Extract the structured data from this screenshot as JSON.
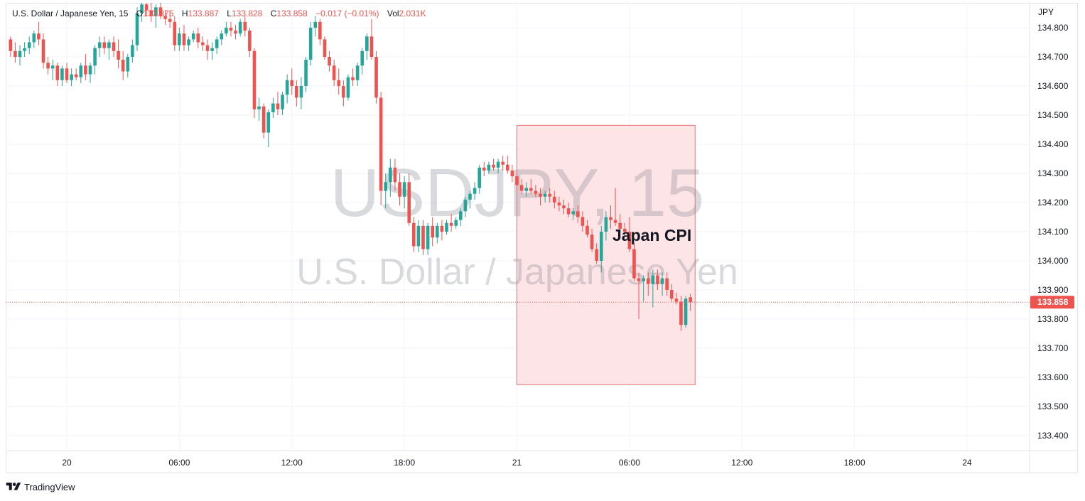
{
  "legend": {
    "symbol": "U.S. Dollar / Japanese Yen, 15",
    "o_label": "O",
    "o_value": "133.875",
    "h_label": "H",
    "h_value": "133.887",
    "l_label": "L",
    "l_value": "133.828",
    "c_label": "C",
    "c_value": "133.858",
    "change": "−0.017 (−0.01%)",
    "vol_label": "Vol",
    "vol_value": "2.031K"
  },
  "watermark": {
    "line1": "USDJPY, 15",
    "line2": "U.S. Dollar / Japanese Yen"
  },
  "annotation": {
    "label": "Japan CPI"
  },
  "axis": {
    "currency": "JPY",
    "last_price": "133.858",
    "y_ticks": [
      "134.800",
      "134.700",
      "134.600",
      "134.500",
      "134.400",
      "134.300",
      "134.200",
      "134.100",
      "134.000",
      "133.900",
      "133.800",
      "133.700",
      "133.600",
      "133.500",
      "133.400"
    ],
    "x_ticks": [
      "20",
      "06:00",
      "12:00",
      "18:00",
      "21",
      "06:00",
      "12:00",
      "18:00",
      "24"
    ]
  },
  "footer": {
    "brand": "TradingView"
  },
  "colors": {
    "up": "#26a69a",
    "down": "#ef5350",
    "box_fill": "#fde4e6",
    "box_stroke": "#e57373",
    "grid": "#f0f3fa"
  },
  "chart_data": {
    "type": "candlestick",
    "title": "U.S. Dollar / Japanese Yen, 15",
    "ylabel": "JPY",
    "ylim": [
      133.35,
      134.85
    ],
    "y_ticks": [
      134.8,
      134.7,
      134.6,
      134.5,
      134.4,
      134.3,
      134.2,
      134.1,
      134.0,
      133.9,
      133.8,
      133.7,
      133.6,
      133.5,
      133.4
    ],
    "x_tick_labels": [
      "20",
      "06:00",
      "12:00",
      "18:00",
      "21",
      "06:00",
      "12:00",
      "18:00",
      "24"
    ],
    "x_tick_times_h": [
      0,
      6,
      12,
      18,
      24,
      30,
      36,
      42,
      48
    ],
    "last_price": 133.858,
    "annotation_box": {
      "label": "Japan CPI",
      "x_start_h": 24.0,
      "x_end_h": 33.5,
      "y_low": 133.575,
      "y_high": 134.465
    },
    "candles": [
      [
        -3.25,
        134.75,
        134.78,
        134.73,
        134.76
      ],
      [
        -3.0,
        134.76,
        134.77,
        134.7,
        134.72
      ],
      [
        -2.75,
        134.72,
        134.75,
        134.68,
        134.7
      ],
      [
        -2.5,
        134.7,
        134.74,
        134.67,
        134.72
      ],
      [
        -2.25,
        134.72,
        134.75,
        134.7,
        134.73
      ],
      [
        -2.0,
        134.73,
        134.77,
        134.71,
        134.75
      ],
      [
        -1.75,
        134.75,
        134.79,
        134.73,
        134.78
      ],
      [
        -1.5,
        134.78,
        134.82,
        134.74,
        134.76
      ],
      [
        -1.25,
        134.76,
        134.78,
        134.66,
        134.68
      ],
      [
        -1.0,
        134.68,
        134.7,
        134.64,
        134.66
      ],
      [
        -0.75,
        134.66,
        134.69,
        134.62,
        134.67
      ],
      [
        -0.5,
        134.67,
        134.68,
        134.6,
        134.62
      ],
      [
        -0.25,
        134.62,
        134.67,
        134.6,
        134.66
      ],
      [
        0.0,
        134.66,
        134.68,
        134.61,
        134.62
      ],
      [
        0.25,
        134.62,
        134.66,
        134.6,
        134.64
      ],
      [
        0.5,
        134.64,
        134.66,
        134.62,
        134.63
      ],
      [
        0.75,
        134.63,
        134.68,
        134.61,
        134.67
      ],
      [
        1.0,
        134.67,
        134.71,
        134.62,
        134.64
      ],
      [
        1.25,
        134.64,
        134.68,
        134.61,
        134.67
      ],
      [
        1.5,
        134.67,
        134.74,
        134.64,
        134.73
      ],
      [
        1.75,
        134.73,
        134.77,
        134.7,
        134.75
      ],
      [
        2.0,
        134.75,
        134.77,
        134.71,
        134.73
      ],
      [
        2.25,
        134.73,
        134.76,
        134.69,
        134.75
      ],
      [
        2.5,
        134.75,
        134.77,
        134.7,
        134.72
      ],
      [
        2.75,
        134.72,
        134.76,
        134.66,
        134.69
      ],
      [
        3.0,
        134.69,
        134.72,
        134.62,
        134.65
      ],
      [
        3.25,
        134.65,
        134.71,
        134.63,
        134.7
      ],
      [
        3.5,
        134.7,
        134.76,
        134.68,
        134.74
      ],
      [
        3.75,
        134.74,
        134.87,
        134.72,
        134.85
      ],
      [
        4.0,
        134.85,
        134.9,
        134.82,
        134.88
      ],
      [
        4.25,
        134.88,
        134.92,
        134.84,
        134.86
      ],
      [
        4.5,
        134.86,
        134.89,
        134.82,
        134.84
      ],
      [
        4.75,
        134.84,
        134.88,
        134.8,
        134.87
      ],
      [
        5.0,
        134.87,
        134.91,
        134.83,
        134.84
      ],
      [
        5.25,
        134.84,
        134.86,
        134.81,
        134.83
      ],
      [
        5.5,
        134.83,
        134.86,
        134.8,
        134.82
      ],
      [
        5.75,
        134.82,
        134.84,
        134.72,
        134.74
      ],
      [
        6.0,
        134.74,
        134.8,
        134.72,
        134.78
      ],
      [
        6.25,
        134.78,
        134.81,
        134.72,
        134.74
      ],
      [
        6.5,
        134.74,
        134.77,
        134.72,
        134.76
      ],
      [
        6.75,
        134.76,
        134.79,
        134.75,
        134.78
      ],
      [
        7.0,
        134.78,
        134.8,
        134.73,
        134.75
      ],
      [
        7.25,
        134.75,
        134.77,
        134.72,
        134.74
      ],
      [
        7.5,
        134.74,
        134.76,
        134.69,
        134.72
      ],
      [
        7.75,
        134.72,
        134.75,
        134.69,
        134.73
      ],
      [
        8.0,
        134.73,
        134.77,
        134.71,
        134.76
      ],
      [
        8.25,
        134.76,
        134.79,
        134.74,
        134.78
      ],
      [
        8.5,
        134.78,
        134.82,
        134.77,
        134.8
      ],
      [
        8.75,
        134.8,
        134.82,
        134.77,
        134.79
      ],
      [
        9.0,
        134.79,
        134.81,
        134.76,
        134.78
      ],
      [
        9.25,
        134.78,
        134.83,
        134.77,
        134.82
      ],
      [
        9.5,
        134.82,
        134.84,
        134.77,
        134.79
      ],
      [
        9.75,
        134.79,
        134.8,
        134.7,
        134.72
      ],
      [
        10.0,
        134.72,
        134.73,
        134.49,
        134.52
      ],
      [
        10.25,
        134.52,
        134.56,
        134.48,
        134.53
      ],
      [
        10.5,
        134.53,
        134.54,
        134.42,
        134.44
      ],
      [
        10.75,
        134.44,
        134.52,
        134.39,
        134.51
      ],
      [
        11.0,
        134.51,
        134.56,
        134.49,
        134.54
      ],
      [
        11.25,
        134.54,
        134.58,
        134.5,
        134.52
      ],
      [
        11.5,
        134.52,
        134.58,
        134.5,
        134.57
      ],
      [
        11.75,
        134.57,
        134.64,
        134.54,
        134.62
      ],
      [
        12.0,
        134.62,
        134.66,
        134.57,
        134.6
      ],
      [
        12.25,
        134.6,
        134.62,
        134.53,
        134.56
      ],
      [
        12.5,
        134.56,
        134.63,
        134.52,
        134.6
      ],
      [
        12.75,
        134.6,
        134.7,
        134.58,
        134.69
      ],
      [
        13.0,
        134.69,
        134.82,
        134.67,
        134.8
      ],
      [
        13.25,
        134.8,
        134.84,
        134.77,
        134.82
      ],
      [
        13.5,
        134.82,
        134.83,
        134.74,
        134.76
      ],
      [
        13.75,
        134.76,
        134.77,
        134.69,
        134.7
      ],
      [
        14.0,
        134.7,
        134.72,
        134.65,
        134.67
      ],
      [
        14.25,
        134.67,
        134.69,
        134.6,
        134.62
      ],
      [
        14.5,
        134.62,
        134.66,
        134.57,
        134.6
      ],
      [
        14.75,
        134.6,
        134.62,
        134.53,
        134.56
      ],
      [
        15.0,
        134.56,
        134.64,
        134.55,
        134.63
      ],
      [
        15.25,
        134.63,
        134.66,
        134.6,
        134.62
      ],
      [
        15.5,
        134.62,
        134.68,
        134.6,
        134.67
      ],
      [
        15.75,
        134.67,
        134.73,
        134.64,
        134.72
      ],
      [
        16.0,
        134.72,
        134.78,
        134.69,
        134.77
      ],
      [
        16.25,
        134.77,
        134.83,
        134.69,
        134.7
      ],
      [
        16.5,
        134.7,
        134.72,
        134.54,
        134.56
      ],
      [
        16.75,
        134.56,
        134.58,
        134.19,
        134.24
      ],
      [
        17.0,
        134.24,
        134.3,
        134.18,
        134.27
      ],
      [
        17.25,
        134.27,
        134.35,
        134.22,
        134.32
      ],
      [
        17.5,
        134.32,
        134.35,
        134.24,
        134.27
      ],
      [
        17.75,
        134.27,
        134.3,
        134.19,
        134.22
      ],
      [
        18.0,
        134.22,
        134.29,
        134.18,
        134.27
      ],
      [
        18.25,
        134.27,
        134.3,
        134.12,
        134.13
      ],
      [
        18.5,
        134.13,
        134.15,
        134.03,
        134.05
      ],
      [
        18.75,
        134.05,
        134.14,
        134.03,
        134.12
      ],
      [
        19.0,
        134.12,
        134.14,
        134.02,
        134.04
      ],
      [
        19.25,
        134.04,
        134.13,
        134.02,
        134.12
      ],
      [
        19.5,
        134.12,
        134.15,
        134.05,
        134.08
      ],
      [
        19.75,
        134.08,
        134.13,
        134.06,
        134.12
      ],
      [
        20.0,
        134.12,
        134.14,
        134.07,
        134.1
      ],
      [
        20.25,
        134.1,
        134.14,
        134.09,
        134.13
      ],
      [
        20.5,
        134.13,
        134.16,
        134.1,
        134.12
      ],
      [
        20.75,
        134.12,
        134.15,
        134.11,
        134.14
      ],
      [
        21.0,
        134.14,
        134.18,
        134.12,
        134.17
      ],
      [
        21.25,
        134.17,
        134.22,
        134.15,
        134.21
      ],
      [
        21.5,
        134.21,
        134.24,
        134.18,
        134.23
      ],
      [
        21.75,
        134.23,
        134.27,
        134.21,
        134.25
      ],
      [
        22.0,
        134.25,
        134.33,
        134.23,
        134.32
      ],
      [
        22.25,
        134.32,
        134.34,
        134.29,
        134.31
      ],
      [
        22.5,
        134.31,
        134.34,
        134.3,
        134.33
      ],
      [
        22.75,
        134.33,
        134.35,
        134.31,
        134.32
      ],
      [
        23.0,
        134.32,
        134.35,
        134.3,
        134.34
      ],
      [
        23.25,
        134.34,
        134.36,
        134.31,
        134.33
      ],
      [
        23.5,
        134.33,
        134.36,
        134.3,
        134.31
      ],
      [
        23.75,
        134.31,
        134.33,
        134.27,
        134.29
      ],
      [
        24.0,
        134.29,
        134.31,
        134.24,
        134.26
      ],
      [
        24.25,
        134.26,
        134.28,
        134.23,
        134.24
      ],
      [
        24.5,
        134.24,
        134.27,
        134.22,
        134.25
      ],
      [
        24.75,
        134.25,
        134.28,
        134.23,
        134.24
      ],
      [
        25.0,
        134.24,
        134.26,
        134.22,
        134.23
      ],
      [
        25.25,
        134.23,
        134.25,
        134.19,
        134.22
      ],
      [
        25.5,
        134.22,
        134.24,
        134.2,
        134.23
      ],
      [
        25.75,
        134.23,
        134.25,
        134.2,
        134.22
      ],
      [
        26.0,
        134.22,
        134.24,
        134.18,
        134.2
      ],
      [
        26.25,
        134.2,
        134.22,
        134.17,
        134.19
      ],
      [
        26.5,
        134.19,
        134.21,
        134.16,
        134.18
      ],
      [
        26.75,
        134.18,
        134.2,
        134.15,
        134.16
      ],
      [
        27.0,
        134.16,
        134.18,
        134.14,
        134.17
      ],
      [
        27.25,
        134.17,
        134.19,
        134.13,
        134.15
      ],
      [
        27.5,
        134.15,
        134.17,
        134.1,
        134.12
      ],
      [
        27.75,
        134.12,
        134.14,
        134.08,
        134.09
      ],
      [
        28.0,
        134.09,
        134.11,
        134.03,
        134.04
      ],
      [
        28.25,
        134.04,
        134.06,
        133.99,
        134.0
      ],
      [
        28.5,
        134.0,
        134.12,
        133.96,
        134.1
      ],
      [
        28.75,
        134.1,
        134.17,
        134.07,
        134.15
      ],
      [
        29.0,
        134.15,
        134.19,
        134.11,
        134.14
      ],
      [
        29.25,
        134.14,
        134.25,
        134.12,
        134.13
      ],
      [
        29.5,
        134.13,
        134.16,
        134.1,
        134.11
      ],
      [
        29.75,
        134.11,
        134.13,
        134.09,
        134.1
      ],
      [
        30.0,
        134.1,
        134.15,
        134.03,
        134.04
      ],
      [
        30.25,
        134.04,
        134.06,
        133.93,
        133.94
      ],
      [
        30.5,
        133.94,
        133.96,
        133.8,
        133.93
      ],
      [
        30.75,
        133.93,
        133.95,
        133.86,
        133.94
      ],
      [
        31.0,
        133.94,
        133.96,
        133.88,
        133.92
      ],
      [
        31.25,
        133.92,
        133.97,
        133.84,
        133.95
      ],
      [
        31.5,
        133.95,
        133.97,
        133.9,
        133.92
      ],
      [
        31.75,
        133.92,
        133.96,
        133.88,
        133.94
      ],
      [
        32.0,
        133.94,
        133.96,
        133.88,
        133.9
      ],
      [
        32.25,
        133.9,
        133.92,
        133.86,
        133.87
      ],
      [
        32.5,
        133.87,
        133.89,
        133.85,
        133.86
      ],
      [
        32.75,
        133.86,
        133.88,
        133.76,
        133.78
      ],
      [
        33.0,
        133.78,
        133.88,
        133.77,
        133.87
      ],
      [
        33.25,
        133.875,
        133.887,
        133.828,
        133.858
      ]
    ]
  }
}
